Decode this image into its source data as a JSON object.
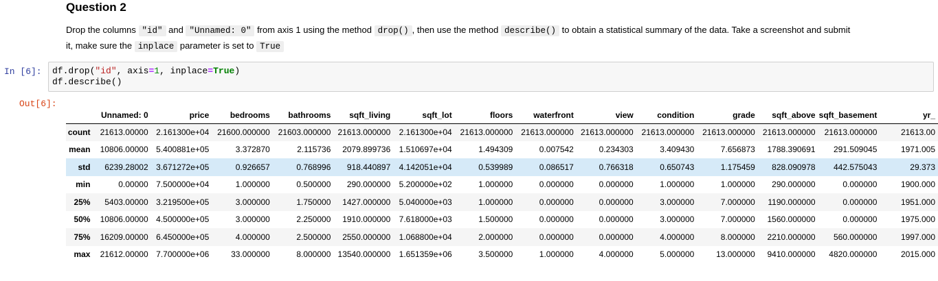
{
  "markdown": {
    "heading": "Question 2",
    "line1": {
      "t1": "Drop the columns ",
      "c1": "\"id\"",
      "t2": " and ",
      "c2": "\"Unnamed: 0\"",
      "t3": " from axis 1 using the method ",
      "c3": "drop()",
      "t4": ", then use the method ",
      "c4": "describe()",
      "t5": " to obtain a statistical summary of the data. Take a screenshot and submit"
    },
    "line2": {
      "t1": "it, make sure the ",
      "c1": "inplace",
      "t2": " parameter is set to ",
      "c2": "True"
    }
  },
  "input_cell": {
    "prompt": "In [6]:",
    "line1": {
      "a": "df.drop(",
      "b": "\"id\"",
      "c": ", axis",
      "d": "=",
      "e": "1",
      "f": ", inplace",
      "g": "=",
      "h": "True",
      "i": ")"
    },
    "line2": "df.describe()"
  },
  "output_cell": {
    "prompt": "Out[6]:",
    "columns": [
      "Unnamed: 0",
      "price",
      "bedrooms",
      "bathrooms",
      "sqft_living",
      "sqft_lot",
      "floors",
      "waterfront",
      "view",
      "condition",
      "grade",
      "sqft_above",
      "sqft_basement",
      "yr_"
    ],
    "rows": [
      {
        "label": "count",
        "values": [
          "21613.00000",
          "2.161300e+04",
          "21600.000000",
          "21603.000000",
          "21613.000000",
          "2.161300e+04",
          "21613.000000",
          "21613.000000",
          "21613.000000",
          "21613.000000",
          "21613.000000",
          "21613.000000",
          "21613.000000",
          "21613.00"
        ]
      },
      {
        "label": "mean",
        "values": [
          "10806.00000",
          "5.400881e+05",
          "3.372870",
          "2.115736",
          "2079.899736",
          "1.510697e+04",
          "1.494309",
          "0.007542",
          "0.234303",
          "3.409430",
          "7.656873",
          "1788.390691",
          "291.509045",
          "1971.005"
        ]
      },
      {
        "label": "std",
        "values": [
          "6239.28002",
          "3.671272e+05",
          "0.926657",
          "0.768996",
          "918.440897",
          "4.142051e+04",
          "0.539989",
          "0.086517",
          "0.766318",
          "0.650743",
          "1.175459",
          "828.090978",
          "442.575043",
          "29.373"
        ]
      },
      {
        "label": "min",
        "values": [
          "0.00000",
          "7.500000e+04",
          "1.000000",
          "0.500000",
          "290.000000",
          "5.200000e+02",
          "1.000000",
          "0.000000",
          "0.000000",
          "1.000000",
          "1.000000",
          "290.000000",
          "0.000000",
          "1900.000"
        ]
      },
      {
        "label": "25%",
        "values": [
          "5403.00000",
          "3.219500e+05",
          "3.000000",
          "1.750000",
          "1427.000000",
          "5.040000e+03",
          "1.000000",
          "0.000000",
          "0.000000",
          "3.000000",
          "7.000000",
          "1190.000000",
          "0.000000",
          "1951.000"
        ]
      },
      {
        "label": "50%",
        "values": [
          "10806.00000",
          "4.500000e+05",
          "3.000000",
          "2.250000",
          "1910.000000",
          "7.618000e+03",
          "1.500000",
          "0.000000",
          "0.000000",
          "3.000000",
          "7.000000",
          "1560.000000",
          "0.000000",
          "1975.000"
        ]
      },
      {
        "label": "75%",
        "values": [
          "16209.00000",
          "6.450000e+05",
          "4.000000",
          "2.500000",
          "2550.000000",
          "1.068800e+04",
          "2.000000",
          "0.000000",
          "0.000000",
          "4.000000",
          "8.000000",
          "2210.000000",
          "560.000000",
          "1997.000"
        ]
      },
      {
        "label": "max",
        "values": [
          "21612.00000",
          "7.700000e+06",
          "33.000000",
          "8.000000",
          "13540.000000",
          "1.651359e+06",
          "3.500000",
          "1.000000",
          "4.000000",
          "5.000000",
          "13.000000",
          "9410.000000",
          "4820.000000",
          "2015.000"
        ]
      }
    ],
    "highlighted_row_color": "#d6eaf8",
    "alt_row_color": "#f5f5f5"
  }
}
